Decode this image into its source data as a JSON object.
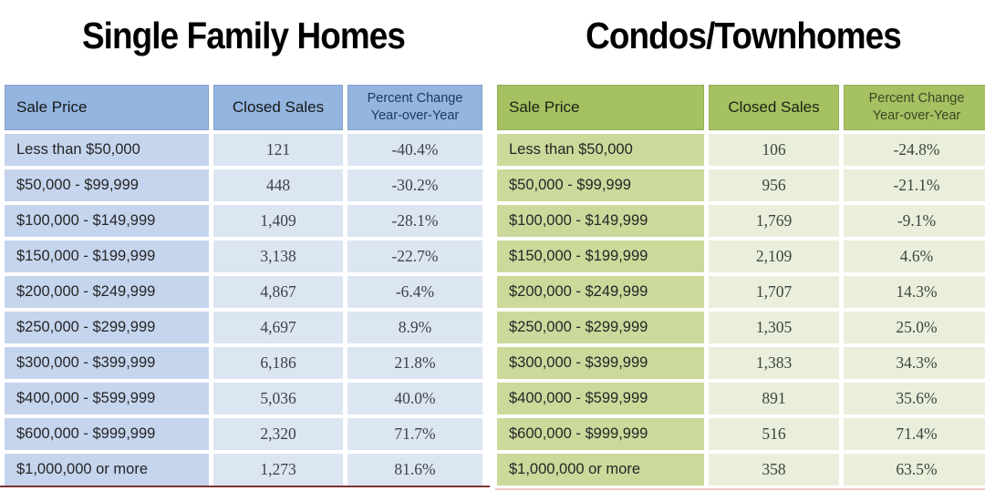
{
  "chart_data": [
    {
      "type": "table",
      "title": "Single Family Homes",
      "columns": [
        "Sale Price",
        "Closed Sales",
        "Percent Change Year-over-Year"
      ],
      "rows": [
        [
          "Less than $50,000",
          121,
          "-40.4%"
        ],
        [
          "$50,000 - $99,999",
          448,
          "-30.2%"
        ],
        [
          "$100,000 - $149,999",
          1409,
          "-28.1%"
        ],
        [
          "$150,000 - $199,999",
          3138,
          "-22.7%"
        ],
        [
          "$200,000 - $249,999",
          4867,
          "-6.4%"
        ],
        [
          "$250,000 - $299,999",
          4697,
          "8.9%"
        ],
        [
          "$300,000 - $399,999",
          6186,
          "21.8%"
        ],
        [
          "$400,000 - $599,999",
          5036,
          "40.0%"
        ],
        [
          "$600,000 - $999,999",
          2320,
          "71.7%"
        ],
        [
          "$1,000,000 or more",
          1273,
          "81.6%"
        ]
      ]
    },
    {
      "type": "table",
      "title": "Condos/Townhomes",
      "columns": [
        "Sale Price",
        "Closed Sales",
        "Percent Change Year-over-Year"
      ],
      "rows": [
        [
          "Less than $50,000",
          106,
          "-24.8%"
        ],
        [
          "$50,000 - $99,999",
          956,
          "-21.1%"
        ],
        [
          "$100,000 - $149,999",
          1769,
          "-9.1%"
        ],
        [
          "$150,000 - $199,999",
          2109,
          "4.6%"
        ],
        [
          "$200,000 - $249,999",
          1707,
          "14.3%"
        ],
        [
          "$250,000 - $299,999",
          1305,
          "25.0%"
        ],
        [
          "$300,000 - $399,999",
          1383,
          "34.3%"
        ],
        [
          "$400,000 - $599,999",
          891,
          "35.6%"
        ],
        [
          "$600,000 - $999,999",
          516,
          "71.4%"
        ],
        [
          "$1,000,000 or more",
          358,
          "63.5%"
        ]
      ]
    }
  ],
  "tables": [
    {
      "title": "Single Family Homes",
      "headers": {
        "sale_price": "Sale Price",
        "closed_sales": "Closed Sales",
        "percent_line1": "Percent Change",
        "percent_line2": "Year-over-Year"
      },
      "theme": {
        "header_bg": "#93B5DF",
        "header_text": "#161616",
        "percent_header_text": "#1F3864",
        "price_bg": "#C6D5EE",
        "value_bg": "#DCE6F3",
        "price_text": "#262626",
        "value_text": "#3F4149"
      },
      "rows": [
        {
          "price": "Less than $50,000",
          "sales": "121",
          "change": "-40.4%"
        },
        {
          "price": "$50,000 - $99,999",
          "sales": "448",
          "change": "-30.2%"
        },
        {
          "price": "$100,000 - $149,999",
          "sales": "1,409",
          "change": "-28.1%"
        },
        {
          "price": "$150,000 - $199,999",
          "sales": "3,138",
          "change": "-22.7%"
        },
        {
          "price": "$200,000 - $249,999",
          "sales": "4,867",
          "change": "-6.4%"
        },
        {
          "price": "$250,000 - $299,999",
          "sales": "4,697",
          "change": "8.9%"
        },
        {
          "price": "$300,000 - $399,999",
          "sales": "6,186",
          "change": "21.8%"
        },
        {
          "price": "$400,000 - $599,999",
          "sales": "5,036",
          "change": "40.0%"
        },
        {
          "price": "$600,000 - $999,999",
          "sales": "2,320",
          "change": "71.7%"
        },
        {
          "price": "$1,000,000 or more",
          "sales": "1,273",
          "change": "81.6%"
        }
      ]
    },
    {
      "title": "Condos/Townhomes",
      "headers": {
        "sale_price": "Sale Price",
        "closed_sales": "Closed Sales",
        "percent_line1": "Percent Change",
        "percent_line2": "Year-over-Year"
      },
      "theme": {
        "header_bg": "#A5C162",
        "header_text": "#1C2212",
        "percent_header_text": "#3D4524",
        "price_bg": "#CBD99B",
        "value_bg": "#E9EFDB",
        "price_text": "#262626",
        "value_text": "#3F4440"
      },
      "rows": [
        {
          "price": "Less than $50,000",
          "sales": "106",
          "change": "-24.8%"
        },
        {
          "price": "$50,000 - $99,999",
          "sales": "956",
          "change": "-21.1%"
        },
        {
          "price": "$100,000 - $149,999",
          "sales": "1,769",
          "change": "-9.1%"
        },
        {
          "price": "$150,000 - $199,999",
          "sales": "2,109",
          "change": "4.6%"
        },
        {
          "price": "$200,000 - $249,999",
          "sales": "1,707",
          "change": "14.3%"
        },
        {
          "price": "$250,000 - $299,999",
          "sales": "1,305",
          "change": "25.0%"
        },
        {
          "price": "$300,000 - $399,999",
          "sales": "1,383",
          "change": "34.3%"
        },
        {
          "price": "$400,000 - $599,999",
          "sales": "891",
          "change": "35.6%"
        },
        {
          "price": "$600,000 - $999,999",
          "sales": "516",
          "change": "71.4%"
        },
        {
          "price": "$1,000,000 or more",
          "sales": "358",
          "change": "63.5%"
        }
      ]
    }
  ],
  "decor": {
    "rule_left_color": "#7C3433",
    "rule_right_color": "#F2C3C9"
  }
}
